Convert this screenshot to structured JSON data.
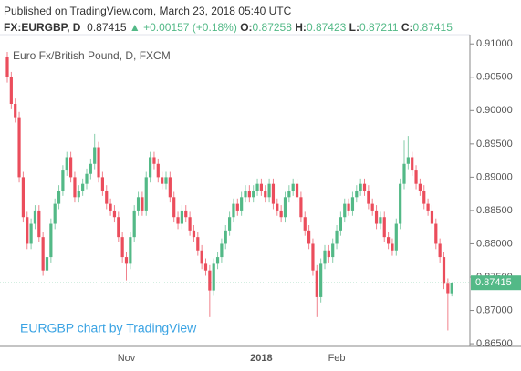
{
  "header": {
    "published": "Published on TradingView.com, March 23, 2018 05:40 UTC",
    "symbol": "FX:EURGBP, D",
    "change": "▲ +0.00157 (+0.18%)",
    "o_label": "O:",
    "h_label": "H:",
    "l_label": "L:",
    "c_label": "C:"
  },
  "chart_data": {
    "type": "candlestick",
    "title": "Euro Fx/British Pound, D, FXCM",
    "watermark": "EURGBP chart by TradingView",
    "up_color": "#53b987",
    "down_color": "#eb4d5c",
    "grid": false,
    "ylim": [
      0.8646,
      0.9114
    ],
    "yticks": [
      {
        "value": 0.865,
        "label": "0.86500"
      },
      {
        "value": 0.87,
        "label": "0.87000"
      },
      {
        "value": 0.875,
        "label": "0.87500"
      },
      {
        "value": 0.88,
        "label": "0.88000"
      },
      {
        "value": 0.885,
        "label": "0.88500"
      },
      {
        "value": 0.89,
        "label": "0.89000"
      },
      {
        "value": 0.895,
        "label": "0.89500"
      },
      {
        "value": 0.9,
        "label": "0.90000"
      },
      {
        "value": 0.905,
        "label": "0.90500"
      },
      {
        "value": 0.91,
        "label": "0.91000"
      }
    ],
    "categories": [
      null,
      null,
      null,
      null,
      null,
      null,
      null,
      null,
      null,
      null,
      null,
      null,
      null,
      null,
      null,
      null,
      null,
      null,
      null,
      null,
      null,
      null,
      null,
      null,
      null,
      null,
      null,
      null,
      null,
      null,
      "Nov",
      null,
      null,
      null,
      null,
      null,
      null,
      null,
      null,
      null,
      null,
      null,
      null,
      null,
      null,
      null,
      null,
      null,
      null,
      null,
      null,
      null,
      null,
      null,
      null,
      null,
      null,
      null,
      null,
      null,
      null,
      null,
      null,
      null,
      "2018",
      null,
      null,
      null,
      null,
      null,
      null,
      null,
      null,
      null,
      null,
      null,
      null,
      null,
      null,
      null,
      null,
      null,
      null,
      "Feb",
      null,
      null,
      null,
      null,
      null,
      null,
      null,
      null,
      null,
      null,
      null,
      null,
      null,
      null,
      null,
      null,
      null,
      null,
      null,
      null,
      null,
      null,
      null,
      null,
      null,
      null,
      null,
      null,
      null
    ],
    "open": [
      0.908,
      0.905,
      0.901,
      0.899,
      0.89,
      0.884,
      0.88,
      0.883,
      0.885,
      0.881,
      0.876,
      0.878,
      0.883,
      0.886,
      0.888,
      0.891,
      0.893,
      0.89,
      0.887,
      0.888,
      0.889,
      0.8905,
      0.892,
      0.8945,
      0.89,
      0.888,
      0.886,
      0.885,
      0.884,
      0.881,
      0.878,
      0.877,
      0.881,
      0.885,
      0.887,
      0.885,
      0.89,
      0.893,
      0.892,
      0.89,
      0.889,
      0.89,
      0.887,
      0.884,
      0.883,
      0.885,
      0.884,
      0.882,
      0.881,
      0.879,
      0.877,
      0.876,
      0.873,
      0.877,
      0.878,
      0.88,
      0.882,
      0.884,
      0.886,
      0.885,
      0.887,
      0.888,
      0.887,
      0.888,
      0.889,
      0.888,
      0.887,
      0.889,
      0.886,
      0.885,
      0.884,
      0.887,
      0.888,
      0.889,
      0.887,
      0.884,
      0.882,
      0.88,
      0.876,
      0.872,
      0.877,
      0.879,
      0.878,
      0.88,
      0.882,
      0.884,
      0.886,
      0.885,
      0.887,
      0.888,
      0.889,
      0.888,
      0.886,
      0.885,
      0.883,
      0.884,
      0.881,
      0.88,
      0.879,
      0.883,
      0.889,
      0.892,
      0.893,
      0.891,
      0.889,
      0.888,
      0.886,
      0.885,
      0.883,
      0.88,
      0.878,
      0.874,
      0.87258
    ],
    "high": [
      0.9088,
      0.9058,
      0.9018,
      0.8998,
      0.8908,
      0.8848,
      0.8838,
      0.8858,
      0.8858,
      0.8818,
      0.8788,
      0.8838,
      0.8868,
      0.8888,
      0.8918,
      0.8938,
      0.8938,
      0.8908,
      0.8888,
      0.8898,
      0.8913,
      0.8928,
      0.8965,
      0.8953,
      0.8908,
      0.8888,
      0.8868,
      0.8858,
      0.8848,
      0.8818,
      0.8788,
      0.8818,
      0.8858,
      0.8878,
      0.8878,
      0.8908,
      0.8938,
      0.8938,
      0.8928,
      0.8908,
      0.8908,
      0.8908,
      0.8878,
      0.8848,
      0.8858,
      0.8858,
      0.8848,
      0.8828,
      0.8818,
      0.8798,
      0.8778,
      0.8768,
      0.8778,
      0.8788,
      0.8808,
      0.8828,
      0.8848,
      0.8868,
      0.8868,
      0.8878,
      0.8888,
      0.8888,
      0.8888,
      0.8898,
      0.8898,
      0.8888,
      0.8898,
      0.8898,
      0.8868,
      0.8858,
      0.8878,
      0.8888,
      0.8898,
      0.8898,
      0.8878,
      0.8848,
      0.8828,
      0.8808,
      0.8768,
      0.8778,
      0.8798,
      0.8798,
      0.8808,
      0.8828,
      0.8848,
      0.8868,
      0.8868,
      0.8878,
      0.8888,
      0.8898,
      0.8898,
      0.8888,
      0.8868,
      0.8858,
      0.8848,
      0.8848,
      0.8818,
      0.8808,
      0.8838,
      0.8898,
      0.8955,
      0.8962,
      0.8938,
      0.8918,
      0.8898,
      0.8888,
      0.8868,
      0.8858,
      0.8838,
      0.8808,
      0.8788,
      0.8748,
      0.87423
    ],
    "low": [
      0.9042,
      0.9002,
      0.8982,
      0.8892,
      0.8832,
      0.8792,
      0.8792,
      0.8822,
      0.8802,
      0.8752,
      0.8752,
      0.8772,
      0.8822,
      0.8852,
      0.8872,
      0.8902,
      0.8892,
      0.8862,
      0.8862,
      0.8872,
      0.8882,
      0.8897,
      0.8912,
      0.8892,
      0.8872,
      0.8852,
      0.8842,
      0.8832,
      0.8802,
      0.8772,
      0.8745,
      0.8762,
      0.8802,
      0.8842,
      0.8842,
      0.8842,
      0.8892,
      0.8912,
      0.8892,
      0.8882,
      0.8882,
      0.8862,
      0.8832,
      0.8822,
      0.8822,
      0.8832,
      0.8812,
      0.8802,
      0.8782,
      0.8762,
      0.8752,
      0.869,
      0.8722,
      0.8762,
      0.8772,
      0.8792,
      0.8812,
      0.8832,
      0.8842,
      0.8842,
      0.8862,
      0.8862,
      0.8862,
      0.8872,
      0.8872,
      0.8862,
      0.8862,
      0.8852,
      0.8842,
      0.8832,
      0.8832,
      0.8862,
      0.8872,
      0.8862,
      0.8832,
      0.8812,
      0.8792,
      0.8752,
      0.869,
      0.8712,
      0.8762,
      0.8772,
      0.8772,
      0.8792,
      0.8812,
      0.8832,
      0.8842,
      0.8842,
      0.8862,
      0.8872,
      0.8872,
      0.8852,
      0.8842,
      0.8822,
      0.8822,
      0.8802,
      0.8792,
      0.8782,
      0.8782,
      0.8822,
      0.8882,
      0.8912,
      0.8902,
      0.8882,
      0.8872,
      0.8852,
      0.8842,
      0.8822,
      0.8792,
      0.8772,
      0.8732,
      0.867,
      0.87211
    ],
    "close": [
      0.905,
      0.901,
      0.899,
      0.89,
      0.884,
      0.88,
      0.883,
      0.885,
      0.881,
      0.876,
      0.878,
      0.883,
      0.886,
      0.888,
      0.891,
      0.893,
      0.89,
      0.887,
      0.888,
      0.889,
      0.8905,
      0.892,
      0.8945,
      0.89,
      0.888,
      0.886,
      0.885,
      0.884,
      0.881,
      0.878,
      0.877,
      0.881,
      0.885,
      0.887,
      0.885,
      0.89,
      0.893,
      0.892,
      0.89,
      0.889,
      0.89,
      0.887,
      0.884,
      0.883,
      0.885,
      0.884,
      0.882,
      0.881,
      0.879,
      0.877,
      0.876,
      0.873,
      0.877,
      0.878,
      0.88,
      0.882,
      0.884,
      0.886,
      0.885,
      0.887,
      0.888,
      0.887,
      0.888,
      0.889,
      0.888,
      0.887,
      0.889,
      0.886,
      0.885,
      0.884,
      0.887,
      0.888,
      0.889,
      0.887,
      0.884,
      0.882,
      0.88,
      0.876,
      0.872,
      0.877,
      0.879,
      0.878,
      0.88,
      0.882,
      0.884,
      0.886,
      0.885,
      0.887,
      0.888,
      0.889,
      0.888,
      0.886,
      0.885,
      0.883,
      0.884,
      0.881,
      0.88,
      0.879,
      0.883,
      0.889,
      0.892,
      0.893,
      0.891,
      0.889,
      0.888,
      0.886,
      0.885,
      0.883,
      0.88,
      0.878,
      0.874,
      0.8726,
      0.87415
    ]
  }
}
